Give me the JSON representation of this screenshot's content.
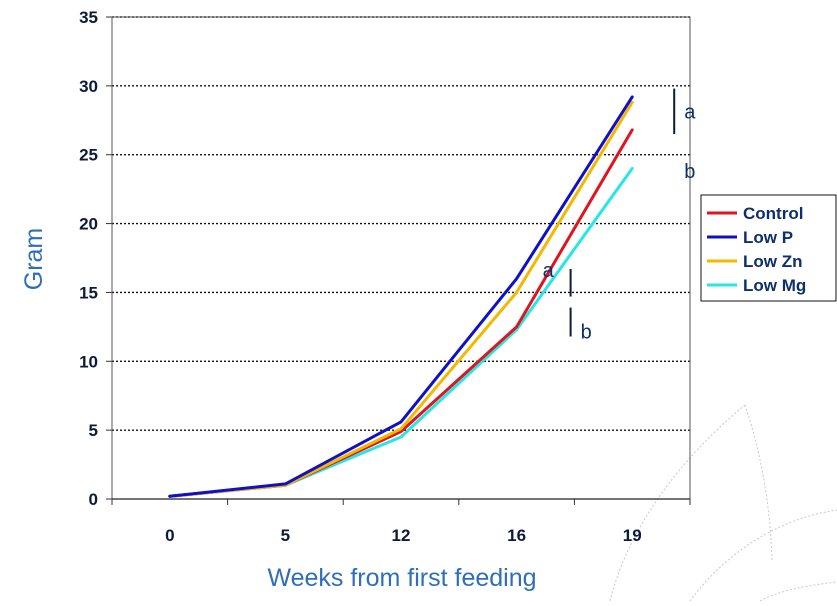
{
  "chart_data": {
    "type": "line",
    "categories": [
      "0",
      "5",
      "12",
      "16",
      "19"
    ],
    "xlabel": "Weeks from first feeding",
    "ylabel": "Gram",
    "ylim": [
      0,
      35
    ],
    "yticks": [
      0,
      5,
      10,
      15,
      20,
      25,
      30,
      35
    ],
    "grid": "horizontal dotted",
    "legend_position": "right",
    "series": [
      {
        "name": "Control",
        "color": "#e0141e",
        "values": [
          0.2,
          1.0,
          4.9,
          12.5,
          26.8
        ]
      },
      {
        "name": "Low P",
        "color": "#1010c8",
        "values": [
          0.2,
          1.1,
          5.6,
          16.0,
          29.2
        ]
      },
      {
        "name": "Low Zn",
        "color": "#f5b800",
        "values": [
          0.2,
          1.0,
          5.1,
          15.0,
          28.8
        ]
      },
      {
        "name": "Low Mg",
        "color": "#26e6e6",
        "values": [
          0.2,
          1.0,
          4.5,
          12.3,
          24.0
        ]
      }
    ],
    "annotations": [
      {
        "text": "a",
        "category": "16",
        "range": [
          14.7,
          16.7
        ]
      },
      {
        "text": "b",
        "category": "16",
        "range": [
          11.8,
          13.9
        ]
      },
      {
        "text": "a",
        "category": "19",
        "range": [
          26.5,
          29.8
        ]
      },
      {
        "text": "b",
        "category": "19",
        "range": null
      }
    ]
  }
}
